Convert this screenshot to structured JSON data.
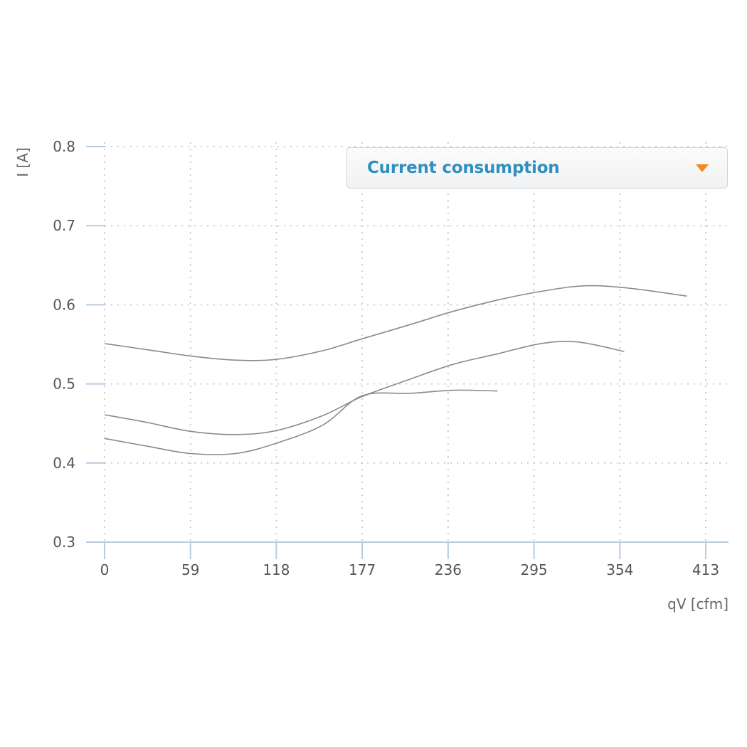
{
  "chart_data": {
    "type": "line",
    "xlabel": "qV [cfm]",
    "ylabel": "I [A]",
    "xlim": [
      0,
      413
    ],
    "ylim": [
      0.3,
      0.8
    ],
    "xticks": [
      0,
      59,
      118,
      177,
      236,
      295,
      354,
      413
    ],
    "yticks": [
      0.3,
      0.4,
      0.5,
      0.6,
      0.7,
      0.8
    ],
    "xtick_labels": [
      "0",
      "59",
      "118",
      "177",
      "236",
      "295",
      "354",
      "413"
    ],
    "ytick_labels": [
      "0.3",
      "0.4",
      "0.5",
      "0.6",
      "0.7",
      "0.8"
    ],
    "grid": true,
    "line_color": "#8a8a8a",
    "series": [
      {
        "x": [
          0,
          30,
          60,
          90,
          118,
          150,
          177,
          210,
          240,
          270,
          300,
          330,
          360,
          400
        ],
        "y": [
          0.551,
          0.543,
          0.535,
          0.53,
          0.531,
          0.542,
          0.557,
          0.575,
          0.592,
          0.606,
          0.617,
          0.624,
          0.621,
          0.611
        ]
      },
      {
        "x": [
          0,
          30,
          59,
          90,
          118,
          150,
          177,
          210,
          240,
          270,
          300,
          325,
          357
        ],
        "y": [
          0.461,
          0.451,
          0.44,
          0.436,
          0.441,
          0.46,
          0.484,
          0.506,
          0.525,
          0.538,
          0.551,
          0.553,
          0.541
        ]
      },
      {
        "x": [
          0,
          30,
          59,
          90,
          118,
          150,
          177,
          210,
          240,
          270
        ],
        "y": [
          0.431,
          0.421,
          0.412,
          0.412,
          0.425,
          0.448,
          0.485,
          0.488,
          0.492,
          0.491
        ]
      }
    ]
  },
  "dropdown": {
    "label": "Current consumption",
    "arrow_icon": "caret-down-icon",
    "arrow_color": "#f08a1c",
    "label_color": "#2f8fc0"
  }
}
